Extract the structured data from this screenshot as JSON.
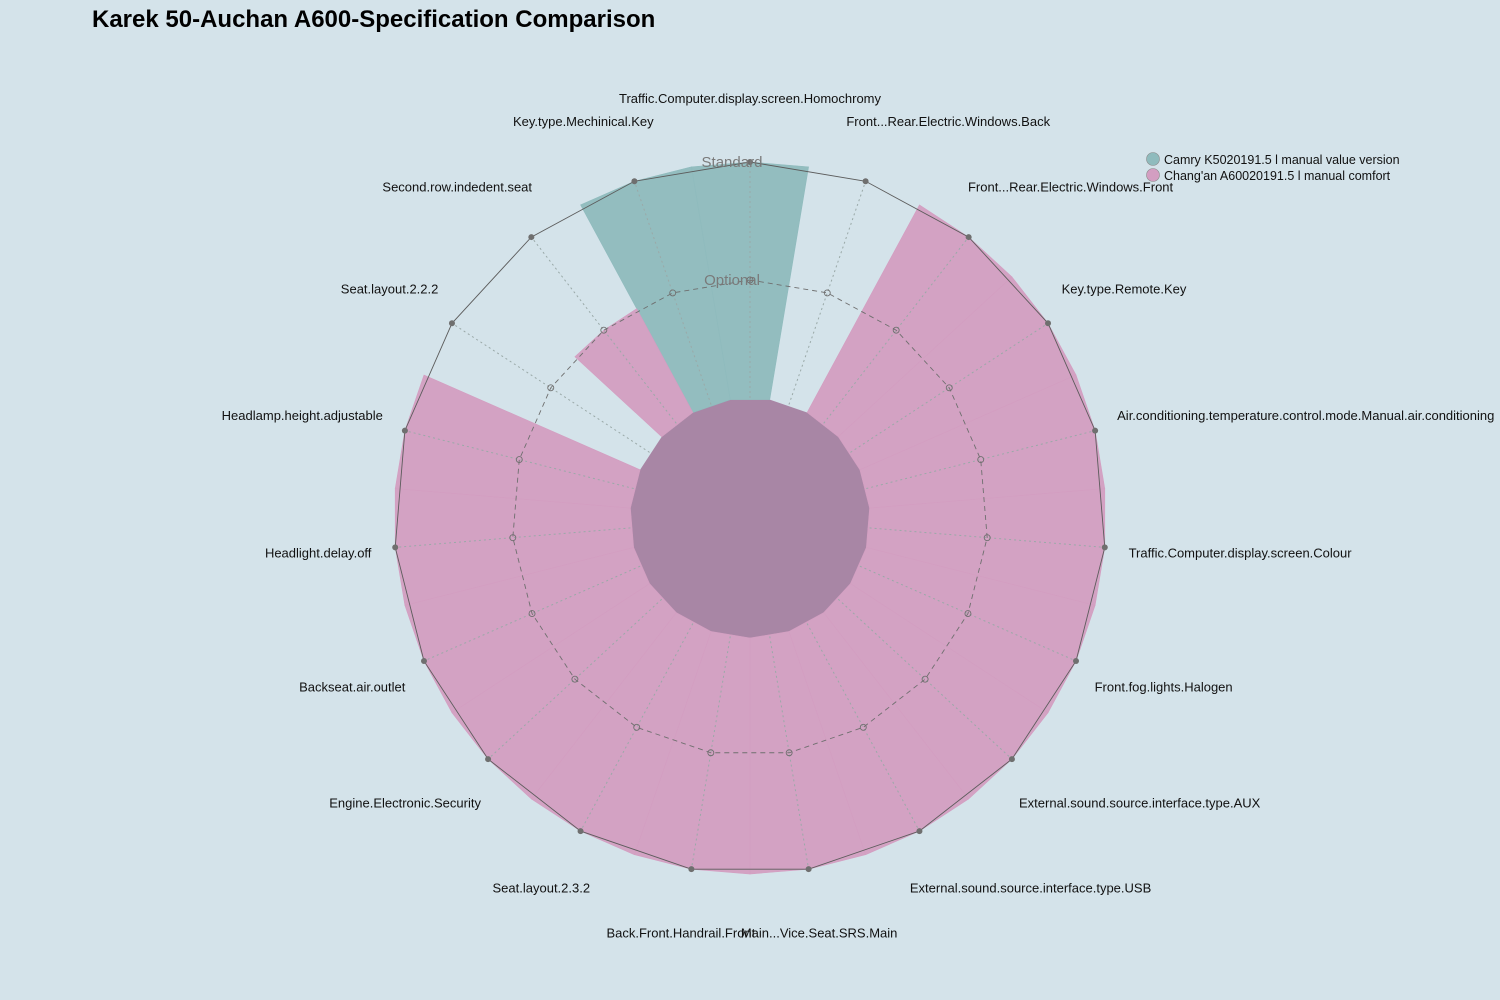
{
  "chart_data": {
    "type": "radar",
    "title": "Karek 50-Auchan A600-Specification Comparison",
    "levels": [
      "Optional",
      "Standard"
    ],
    "legend_position": "top-right",
    "grid": true,
    "axes": [
      "Traffic.Computer.display.screen.Homochromy",
      "Front...Rear.Electric.Windows.Back",
      "Front...Rear.Electric.Windows.Front",
      "Key.type.Remote.Key",
      "Air.conditioning.temperature.control.mode.Manual.air.conditioning",
      "Traffic.Computer.display.screen.Colour",
      "Front.fog.lights.Halogen",
      "External.sound.source.interface.type.AUX",
      "External.sound.source.interface.type.USB",
      "Main...Vice.Seat.SRS.Main",
      "Back.Front.Handrail.Front",
      "Seat.layout.2.3.2",
      "Engine.Electronic.Security",
      "Backseat.air.outlet",
      "Headlight.delay.off",
      "Headlamp.height.adjustable",
      "Seat.layout.2.2.2",
      "Second.row.indedent.seat",
      "Key.type.Mechinical.Key"
    ],
    "scale": {
      "min": 0,
      "max": 2,
      "ticks": [
        1,
        2
      ],
      "tick_labels": [
        "Optional",
        "Standard"
      ]
    },
    "series": [
      {
        "name": "Camry K5020191.5 l manual value version",
        "color": "#8fbbbd",
        "values": [
          2,
          0,
          0,
          0,
          0,
          0,
          0,
          0,
          0,
          0,
          0,
          0,
          0,
          0,
          0,
          0,
          0,
          0,
          2
        ]
      },
      {
        "name": "Chang'an A60020191.5 l manual comfort",
        "color": "#d39ec1",
        "values": [
          0,
          0,
          2,
          2,
          2,
          2,
          2,
          2,
          2,
          2,
          2,
          2,
          2,
          2,
          2,
          2,
          0,
          1,
          0
        ]
      }
    ]
  }
}
